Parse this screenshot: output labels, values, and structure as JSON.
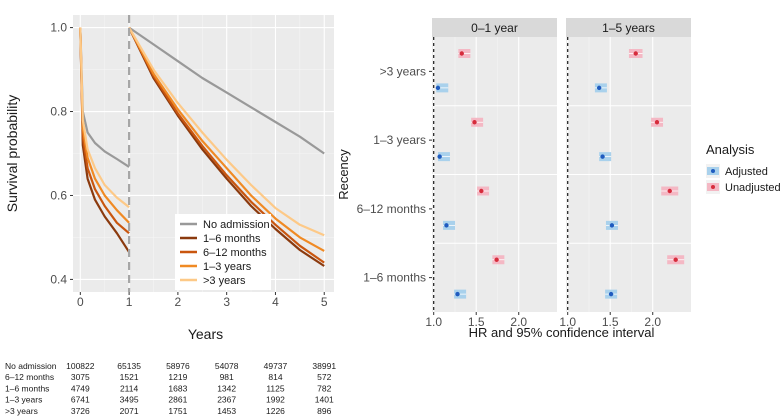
{
  "chart_data": [
    {
      "type": "line",
      "panel": "survival",
      "ylabel": "Survival probability",
      "xlabel": "Years",
      "xlim": [
        -0.15,
        5.2
      ],
      "ylim": [
        0.37,
        1.03
      ],
      "x_ticks": [
        0,
        1,
        2,
        3,
        4,
        5
      ],
      "y_ticks": [
        0.4,
        0.6,
        0.8,
        1.0
      ],
      "y_tick_labels": [
        "0.4",
        "0.6",
        "0.8",
        "1.0"
      ],
      "grid": true,
      "vline_x": 1,
      "legend": {
        "position": "bottom-center",
        "entries": [
          {
            "label": "No admission",
            "color": "#999999"
          },
          {
            "label": "1–6 months",
            "color": "#8b3a0e"
          },
          {
            "label": "6–12 months",
            "color": "#c9560f"
          },
          {
            "label": "1–3 years",
            "color": "#f08a24"
          },
          {
            "label": ">3 years",
            "color": "#fdc987"
          }
        ]
      },
      "series": [
        {
          "name": "No admission",
          "color": "#999999",
          "segments": [
            {
              "x": [
                0,
                0.05,
                0.15,
                0.3,
                0.5,
                0.75,
                1.0
              ],
              "y": [
                1.0,
                0.8,
                0.75,
                0.725,
                0.705,
                0.687,
                0.668
              ]
            },
            {
              "x": [
                1.0,
                1.5,
                2,
                2.5,
                3,
                3.5,
                4,
                4.5,
                5
              ],
              "y": [
                1.0,
                0.96,
                0.92,
                0.88,
                0.845,
                0.81,
                0.775,
                0.74,
                0.7
              ]
            }
          ]
        },
        {
          "name": "1–6 months",
          "color": "#8b3a0e",
          "segments": [
            {
              "x": [
                0,
                0.05,
                0.15,
                0.3,
                0.5,
                0.75,
                1.0
              ],
              "y": [
                1.0,
                0.72,
                0.64,
                0.59,
                0.55,
                0.51,
                0.465
              ]
            },
            {
              "x": [
                1.0,
                1.5,
                2,
                2.5,
                3,
                3.5,
                4,
                4.5,
                5
              ],
              "y": [
                1.0,
                0.88,
                0.79,
                0.71,
                0.64,
                0.575,
                0.52,
                0.47,
                0.432
              ]
            }
          ]
        },
        {
          "name": "6–12 months",
          "color": "#c9560f",
          "segments": [
            {
              "x": [
                0,
                0.05,
                0.15,
                0.3,
                0.5,
                0.75,
                1.0
              ],
              "y": [
                1.0,
                0.74,
                0.665,
                0.615,
                0.575,
                0.535,
                0.51
              ]
            },
            {
              "x": [
                1.0,
                1.5,
                2,
                2.5,
                3,
                3.5,
                4,
                4.5,
                5
              ],
              "y": [
                1.0,
                0.885,
                0.795,
                0.718,
                0.648,
                0.585,
                0.53,
                0.48,
                0.44
              ]
            }
          ]
        },
        {
          "name": "1–3 years",
          "color": "#f08a24",
          "segments": [
            {
              "x": [
                0,
                0.05,
                0.15,
                0.3,
                0.5,
                0.75,
                1.0
              ],
              "y": [
                1.0,
                0.76,
                0.69,
                0.64,
                0.6,
                0.565,
                0.535
              ]
            },
            {
              "x": [
                1.0,
                1.5,
                2,
                2.5,
                3,
                3.5,
                4,
                4.5,
                5
              ],
              "y": [
                1.0,
                0.89,
                0.805,
                0.73,
                0.665,
                0.6,
                0.545,
                0.5,
                0.468
              ]
            }
          ]
        },
        {
          "name": ">3 years",
          "color": "#fdc987",
          "segments": [
            {
              "x": [
                0,
                0.05,
                0.15,
                0.3,
                0.5,
                0.75,
                1.0
              ],
              "y": [
                1.0,
                0.78,
                0.71,
                0.665,
                0.625,
                0.595,
                0.572
              ]
            },
            {
              "x": [
                1.0,
                1.5,
                2,
                2.5,
                3,
                3.5,
                4,
                4.5,
                5
              ],
              "y": [
                1.0,
                0.9,
                0.82,
                0.75,
                0.685,
                0.625,
                0.57,
                0.53,
                0.505
              ]
            }
          ]
        }
      ],
      "risk_table": {
        "rows": [
          {
            "label": "No admission",
            "values": [
              "100822",
              "65135",
              "58976",
              "54078",
              "49737",
              "38991"
            ]
          },
          {
            "label": "6–12 months",
            "values": [
              "3075",
              "1521",
              "1219",
              "981",
              "814",
              "572"
            ]
          },
          {
            "label": "1–6 months",
            "values": [
              "4749",
              "2114",
              "1683",
              "1342",
              "1125",
              "782"
            ]
          },
          {
            "label": "1–3 years",
            "values": [
              "6741",
              "3495",
              "2861",
              "2367",
              "1992",
              "1401"
            ]
          },
          {
            "label": ">3 years",
            "values": [
              "3726",
              "2071",
              "1751",
              "1453",
              "1226",
              "896"
            ]
          }
        ]
      }
    },
    {
      "type": "forest",
      "panel": "hazard-ratio",
      "xlabel": "HR and 95% confidence interval",
      "ylabel": "Recency",
      "xlim": [
        0.98,
        2.45
      ],
      "x_ticks": [
        1.0,
        1.5,
        2.0
      ],
      "x_tick_labels": [
        "1.0",
        "1.5",
        "2.0"
      ],
      "reference_line": 1.0,
      "facets": [
        "0–1 year",
        "1–5 years"
      ],
      "categories": [
        ">3 years",
        "1–3 years",
        "6–12 months",
        "1–6 months"
      ],
      "legend": {
        "title": "Analysis",
        "position": "right",
        "entries": [
          {
            "label": "Adjusted",
            "color": "#1f5bbf",
            "band": "#a9d1ec"
          },
          {
            "label": "Unadjusted",
            "color": "#d62c3c",
            "band": "#f4b8c4"
          }
        ]
      },
      "series": [
        {
          "name": "Adjusted",
          "color": "#1f5bbf",
          "band": "#a9d1ec",
          "facets": {
            "0–1 year": [
              {
                "category": ">3 years",
                "hr": 1.05,
                "lo": 1.03,
                "hi": 1.07
              },
              {
                "category": "1–3 years",
                "hr": 1.07,
                "lo": 1.05,
                "hi": 1.09
              },
              {
                "category": "6–12 months",
                "hr": 1.15,
                "lo": 1.11,
                "hi": 1.19
              },
              {
                "category": "1–6 months",
                "hr": 1.28,
                "lo": 1.24,
                "hi": 1.32
              }
            ],
            "1–5 years": [
              {
                "category": ">3 years",
                "hr": 1.37,
                "lo": 1.32,
                "hi": 1.42
              },
              {
                "category": "1–3 years",
                "hr": 1.41,
                "lo": 1.37,
                "hi": 1.45
              },
              {
                "category": "6–12 months",
                "hr": 1.52,
                "lo": 1.45,
                "hi": 1.59
              },
              {
                "category": "1–6 months",
                "hr": 1.51,
                "lo": 1.44,
                "hi": 1.58
              }
            ]
          }
        },
        {
          "name": "Unadjusted",
          "color": "#d62c3c",
          "band": "#f4b8c4",
          "facets": {
            "0–1 year": [
              {
                "category": ">3 years",
                "hr": 1.33,
                "lo": 1.29,
                "hi": 1.37
              },
              {
                "category": "1–3 years",
                "hr": 1.48,
                "lo": 1.44,
                "hi": 1.52
              },
              {
                "category": "6–12 months",
                "hr": 1.56,
                "lo": 1.51,
                "hi": 1.61
              },
              {
                "category": "1–6 months",
                "hr": 1.74,
                "lo": 1.69,
                "hi": 1.8
              }
            ],
            "1–5 years": [
              {
                "category": ">3 years",
                "hr": 1.8,
                "lo": 1.72,
                "hi": 1.88
              },
              {
                "category": "1–3 years",
                "hr": 2.05,
                "lo": 1.98,
                "hi": 2.12
              },
              {
                "category": "6–12 months",
                "hr": 2.2,
                "lo": 2.1,
                "hi": 2.3
              },
              {
                "category": "1–6 months",
                "hr": 2.27,
                "lo": 2.17,
                "hi": 2.37
              }
            ]
          }
        }
      ]
    }
  ]
}
